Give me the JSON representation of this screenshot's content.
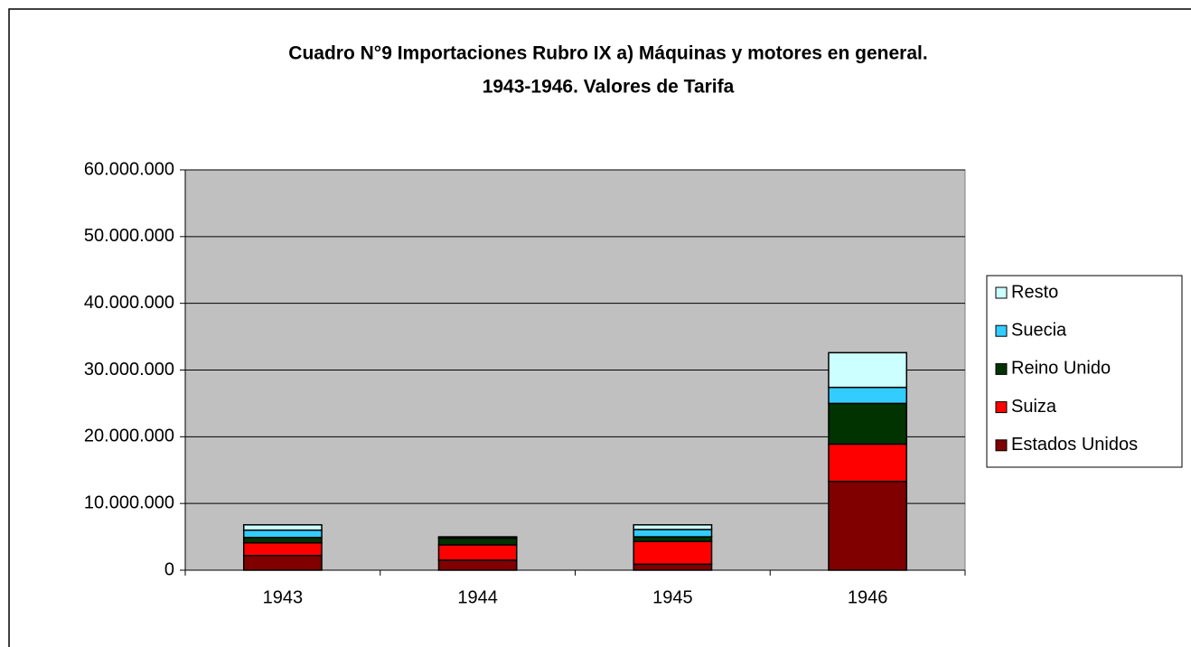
{
  "chart_data": {
    "type": "stacked-bar",
    "title": [
      "Cuadro N°9 Importaciones Rubro IX a) Máquinas y motores en general.",
      "1943-1946. Valores de Tarifa"
    ],
    "categories": [
      "1943",
      "1944",
      "1945",
      "1946"
    ],
    "series": [
      {
        "name": "Estados Unidos",
        "color": "#800000",
        "values": [
          2200000,
          1500000,
          900000,
          13300000
        ]
      },
      {
        "name": "Suiza",
        "color": "#ff0000",
        "values": [
          1900000,
          2300000,
          3400000,
          5600000
        ]
      },
      {
        "name": "Reino Unido",
        "color": "#003300",
        "values": [
          800000,
          1000000,
          700000,
          6100000
        ]
      },
      {
        "name": "Suecia",
        "color": "#33ccff",
        "values": [
          1100000,
          100000,
          1100000,
          2400000
        ]
      },
      {
        "name": "Resto",
        "color": "#ccffff",
        "values": [
          800000,
          100000,
          700000,
          5200000
        ]
      }
    ],
    "ylim": [
      0,
      60000000
    ],
    "yticks": [
      0,
      {
        "value": 10000000,
        "label": "10.000.000"
      },
      {
        "value": 20000000,
        "label": "20.000.000"
      },
      {
        "value": 30000000,
        "label": "30.000.000"
      },
      {
        "value": 40000000,
        "label": "40.000.000"
      },
      {
        "value": 50000000,
        "label": "50.000.000"
      },
      {
        "value": 60000000,
        "label": "60.000.000"
      }
    ],
    "grid": true,
    "legend": "right"
  }
}
